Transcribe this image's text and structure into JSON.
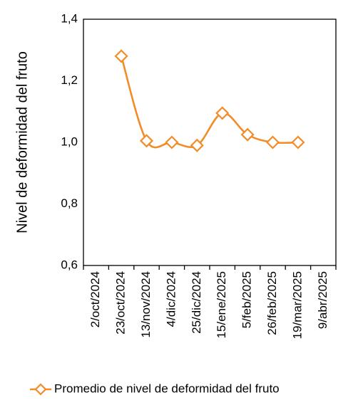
{
  "chart_data": {
    "type": "line",
    "title": "",
    "xlabel": "",
    "ylabel": "Nivel de deformidad del fruto",
    "ylim": [
      0.6,
      1.4
    ],
    "yticks": [
      "0,6",
      "0,8",
      "1,0",
      "1,2",
      "1,4"
    ],
    "x_tick_labels": [
      "2/oct/2024",
      "23/oct/2024",
      "13/nov/2024",
      "4/dic/2024",
      "25/dic/2024",
      "15/ene/2025",
      "5/feb/2025",
      "26/feb/2025",
      "19/mar/2025",
      "9/abr/2025"
    ],
    "series": [
      {
        "name": "Promedio de nivel de deformidad del fruto",
        "color": "#F28C28",
        "marker": "diamond-open",
        "smooth": true,
        "points": [
          {
            "x": "23/oct/2024",
            "y": 1.28
          },
          {
            "x": "13/nov/2024",
            "y": 1.005
          },
          {
            "x": "4/dic/2024",
            "y": 1.0
          },
          {
            "x": "25/dic/2024",
            "y": 0.99
          },
          {
            "x": "15/ene/2025",
            "y": 1.095
          },
          {
            "x": "5/feb/2025",
            "y": 1.025
          },
          {
            "x": "26/feb/2025",
            "y": 1.0
          },
          {
            "x": "19/mar/2025",
            "y": 1.0
          }
        ]
      }
    ],
    "grid": false,
    "legend_position": "bottom"
  }
}
